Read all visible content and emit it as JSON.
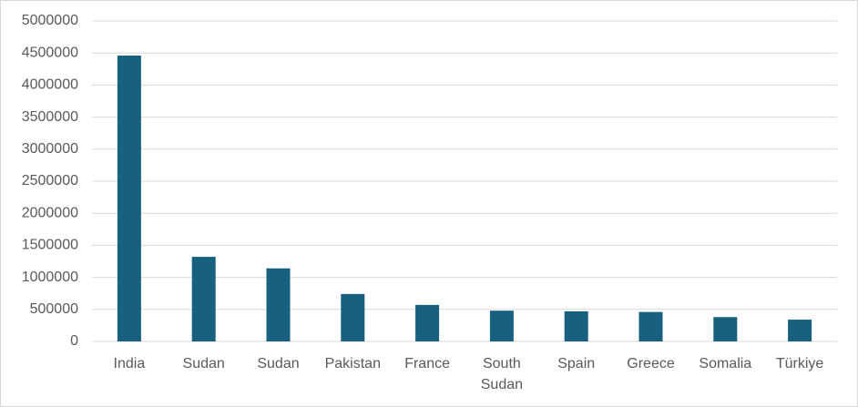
{
  "chart_data": {
    "type": "bar",
    "categories": [
      "India",
      "Sudan",
      "Sudan",
      "Pakistan",
      "France",
      "South Sudan",
      "Spain",
      "Greece",
      "Somalia",
      "Türkiye"
    ],
    "values": [
      4460000,
      1320000,
      1140000,
      740000,
      570000,
      480000,
      470000,
      460000,
      380000,
      340000
    ],
    "color": "#17607f",
    "ylim": [
      0,
      5000000
    ],
    "yticks": [
      0,
      500000,
      1000000,
      1500000,
      2000000,
      2500000,
      3000000,
      3500000,
      4000000,
      4500000,
      5000000
    ],
    "grid": true
  }
}
